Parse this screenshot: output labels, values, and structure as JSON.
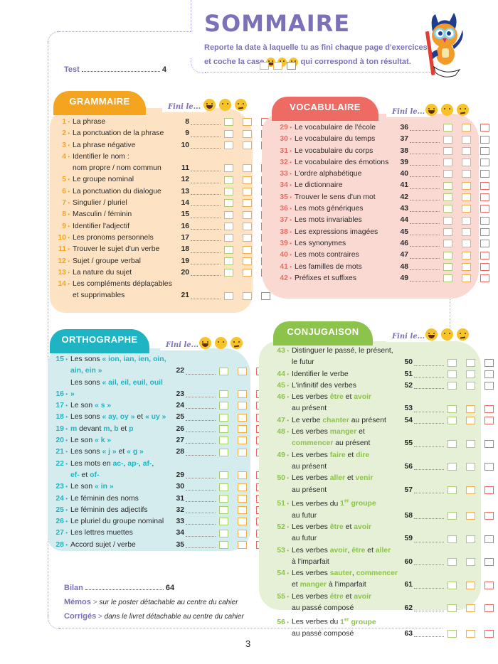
{
  "header": {
    "title": "SOMMAIRE",
    "intro_line1": "Reporte la date à laquelle tu as fini chaque page d'exercices",
    "intro_line2_before": "et coche la case",
    "intro_line2_after": "qui correspond à ton résultat.",
    "mascot": "owl-with-pencil"
  },
  "test": {
    "label": "Test",
    "page": "4"
  },
  "fini_label": "Fini le...",
  "faces": [
    "happy-face-icon",
    "neutral-face-icon",
    "worried-face-icon"
  ],
  "colors": {
    "title": "#7c70b8",
    "grammaire": "#f4a41e",
    "grammaire_bg": "#fde3c4",
    "vocabulaire": "#ee6b63",
    "vocabulaire_bg": "#fbd9d3",
    "orthographe": "#1fb4c4",
    "orthographe_bg": "#d5ecef",
    "conjugaison": "#8cc34a",
    "conjugaison_bg": "#e5f0d6",
    "box_green": "#a8cf6b",
    "box_orange": "#f3b046",
    "box_red": "#ec6a62"
  },
  "sections": {
    "grammaire": {
      "title": "GRAMMAIRE",
      "items": [
        {
          "num": "1",
          "label": "La phrase",
          "page": "8"
        },
        {
          "num": "2",
          "label": "La ponctuation de la phrase",
          "page": "9"
        },
        {
          "num": "3",
          "label": "La phrase négative",
          "page": "10"
        },
        {
          "num": "4",
          "label": "Identifier le nom :",
          "label2": "nom propre / nom commun",
          "page": "11"
        },
        {
          "num": "5",
          "label": "Le groupe nominal",
          "page": "12"
        },
        {
          "num": "6",
          "label": "La ponctuation du dialogue",
          "page": "13"
        },
        {
          "num": "7",
          "label": "Singulier / pluriel",
          "page": "14"
        },
        {
          "num": "8",
          "label": "Masculin / féminin",
          "page": "15"
        },
        {
          "num": "9",
          "label": "Identifier l'adjectif",
          "page": "16"
        },
        {
          "num": "10",
          "label": "Les pronoms personnels",
          "page": "17"
        },
        {
          "num": "11",
          "label": "Trouver le sujet d'un verbe",
          "page": "18"
        },
        {
          "num": "12",
          "label": "Sujet / groupe verbal",
          "page": "19"
        },
        {
          "num": "13",
          "label": "La nature du sujet",
          "page": "20"
        },
        {
          "num": "14",
          "label": "Les compléments déplaçables",
          "label2": "et supprimables",
          "page": "21"
        }
      ]
    },
    "vocabulaire": {
      "title": "VOCABULAIRE",
      "items": [
        {
          "num": "29",
          "label": "Le vocabulaire de l'école",
          "page": "36"
        },
        {
          "num": "30",
          "label": "Le vocabulaire du temps",
          "page": "37"
        },
        {
          "num": "31",
          "label": "Le vocabulaire du corps",
          "page": "38"
        },
        {
          "num": "32",
          "label": "Le vocabulaire des émotions",
          "page": "39"
        },
        {
          "num": "33",
          "label": "L'ordre alphabétique",
          "page": "40"
        },
        {
          "num": "34",
          "label": "Le dictionnaire",
          "page": "41"
        },
        {
          "num": "35",
          "label": "Trouver le sens d'un mot",
          "page": "42"
        },
        {
          "num": "36",
          "label": "Les mots génériques",
          "page": "43"
        },
        {
          "num": "37",
          "label": "Les mots invariables",
          "page": "44"
        },
        {
          "num": "38",
          "label": "Les expressions imagées",
          "page": "45"
        },
        {
          "num": "39",
          "label": "Les synonymes",
          "page": "46"
        },
        {
          "num": "40",
          "label": "Les mots contraires",
          "page": "47"
        },
        {
          "num": "41",
          "label": "Les familles de mots",
          "page": "48"
        },
        {
          "num": "42",
          "label": "Préfixes et suffixes",
          "page": "49"
        }
      ]
    },
    "orthographe": {
      "title": "ORTHOGRAPHE",
      "items": [
        {
          "num": "15",
          "parts": [
            [
              "Les sons ",
              0
            ],
            [
              "« ion, ian, ien, oin,",
              1
            ]
          ],
          "parts2": [
            [
              "ain, ein »",
              1
            ]
          ],
          "page": "22"
        },
        {
          "num": "16",
          "parts": [
            [
              "Les sons ",
              0
            ],
            [
              "« ail, eil, euil, ouil »",
              1
            ]
          ],
          "page": "23"
        },
        {
          "num": "17",
          "parts": [
            [
              "Le son ",
              0
            ],
            [
              "« s »",
              1
            ]
          ],
          "page": "24"
        },
        {
          "num": "18",
          "parts": [
            [
              "Les sons ",
              0
            ],
            [
              "« ay, oy »",
              1
            ],
            [
              " et ",
              0
            ],
            [
              "« uy »",
              1
            ]
          ],
          "page": "25"
        },
        {
          "num": "19",
          "parts": [
            [
              "m",
              1
            ],
            [
              " devant ",
              0
            ],
            [
              "m",
              1
            ],
            [
              ", ",
              0
            ],
            [
              "b",
              1
            ],
            [
              " et ",
              0
            ],
            [
              "p",
              1
            ]
          ],
          "page": "26"
        },
        {
          "num": "20",
          "parts": [
            [
              "Le son ",
              0
            ],
            [
              "« k »",
              1
            ]
          ],
          "page": "27"
        },
        {
          "num": "21",
          "parts": [
            [
              "Les sons ",
              0
            ],
            [
              "« j »",
              1
            ],
            [
              " et ",
              0
            ],
            [
              "« g »",
              1
            ]
          ],
          "page": "28"
        },
        {
          "num": "22",
          "parts": [
            [
              "Les mots en ",
              0
            ],
            [
              "ac-",
              1
            ],
            [
              ", ",
              0
            ],
            [
              "ap-",
              1
            ],
            [
              ", ",
              0
            ],
            [
              "af-",
              1
            ],
            [
              ",",
              0
            ]
          ],
          "parts2": [
            [
              "ef-",
              1
            ],
            [
              " et ",
              0
            ],
            [
              "of-",
              1
            ]
          ],
          "page": "29"
        },
        {
          "num": "23",
          "parts": [
            [
              "Le son ",
              0
            ],
            [
              "« in »",
              1
            ]
          ],
          "page": "30"
        },
        {
          "num": "24",
          "parts": [
            [
              "Le féminin des noms",
              0
            ]
          ],
          "page": "31"
        },
        {
          "num": "25",
          "parts": [
            [
              "Le féminin des adjectifs",
              0
            ]
          ],
          "page": "32"
        },
        {
          "num": "26",
          "parts": [
            [
              "Le pluriel du groupe nominal",
              0
            ]
          ],
          "page": "33"
        },
        {
          "num": "27",
          "parts": [
            [
              "Les lettres muettes",
              0
            ]
          ],
          "page": "34"
        },
        {
          "num": "28",
          "parts": [
            [
              "Accord sujet / verbe",
              0
            ]
          ],
          "page": "35"
        }
      ]
    },
    "conjugaison": {
      "title": "CONJUGAISON",
      "items": [
        {
          "num": "43",
          "parts": [
            [
              "Distinguer le passé, le présent,",
              0
            ]
          ],
          "parts2": [
            [
              "le futur",
              0
            ]
          ],
          "page": "50"
        },
        {
          "num": "44",
          "parts": [
            [
              "Identifier le verbe",
              0
            ]
          ],
          "page": "51"
        },
        {
          "num": "45",
          "parts": [
            [
              "L'infinitif des verbes",
              0
            ]
          ],
          "page": "52"
        },
        {
          "num": "46",
          "parts": [
            [
              "Les verbes ",
              0
            ],
            [
              "être",
              1
            ],
            [
              " et ",
              0
            ],
            [
              "avoir",
              1
            ]
          ],
          "parts2": [
            [
              "au présent",
              0
            ]
          ],
          "page": "53"
        },
        {
          "num": "47",
          "parts": [
            [
              "Le verbe ",
              0
            ],
            [
              "chanter",
              1
            ],
            [
              " au présent",
              0
            ]
          ],
          "page": "54"
        },
        {
          "num": "48",
          "parts": [
            [
              "Les verbes ",
              0
            ],
            [
              "manger",
              1
            ],
            [
              " et",
              0
            ]
          ],
          "parts2": [
            [
              "commencer",
              1
            ],
            [
              " au présent",
              0
            ]
          ],
          "page": "55"
        },
        {
          "num": "49",
          "parts": [
            [
              "Les verbes ",
              0
            ],
            [
              "faire",
              1
            ],
            [
              " et ",
              0
            ],
            [
              "dire",
              1
            ]
          ],
          "parts2": [
            [
              "au présent",
              0
            ]
          ],
          "page": "56"
        },
        {
          "num": "50",
          "parts": [
            [
              "Les verbes ",
              0
            ],
            [
              "aller",
              1
            ],
            [
              " et ",
              0
            ],
            [
              "venir",
              1
            ]
          ],
          "parts2": [
            [
              "au présent",
              0
            ]
          ],
          "page": "57"
        },
        {
          "num": "51",
          "parts": [
            [
              "Les verbes du ",
              0
            ],
            [
              "1er groupe",
              1
            ]
          ],
          "parts2": [
            [
              "au futur",
              0
            ]
          ],
          "page": "58"
        },
        {
          "num": "52",
          "parts": [
            [
              "Les verbes ",
              0
            ],
            [
              "être",
              1
            ],
            [
              " et ",
              0
            ],
            [
              "avoir",
              1
            ]
          ],
          "parts2": [
            [
              "au futur",
              0
            ]
          ],
          "page": "59"
        },
        {
          "num": "53",
          "parts": [
            [
              "Les verbes ",
              0
            ],
            [
              "avoir",
              1
            ],
            [
              ", ",
              0
            ],
            [
              "être",
              1
            ],
            [
              " et ",
              0
            ],
            [
              "aller",
              1
            ]
          ],
          "parts2": [
            [
              "à l'imparfait",
              0
            ]
          ],
          "page": "60"
        },
        {
          "num": "54",
          "parts": [
            [
              "Les verbes ",
              0
            ],
            [
              "sauter",
              1
            ],
            [
              ", ",
              0
            ],
            [
              "commencer",
              1
            ]
          ],
          "parts2": [
            [
              "et ",
              0
            ],
            [
              "manger",
              1
            ],
            [
              " à l'imparfait",
              0
            ]
          ],
          "page": "61"
        },
        {
          "num": "55",
          "parts": [
            [
              "Les verbes ",
              0
            ],
            [
              "être",
              1
            ],
            [
              " et ",
              0
            ],
            [
              "avoir",
              1
            ]
          ],
          "parts2": [
            [
              "au passé composé",
              0
            ]
          ],
          "page": "62"
        },
        {
          "num": "56",
          "parts": [
            [
              "Les verbes du ",
              0
            ],
            [
              "1er groupe",
              1
            ]
          ],
          "parts2": [
            [
              "au passé composé",
              0
            ]
          ],
          "page": "63"
        }
      ]
    }
  },
  "footer": {
    "bilan": {
      "label": "Bilan",
      "page": "64"
    },
    "memos": {
      "label": "Mémos",
      "text": "sur le poster détachable au centre du cahier"
    },
    "corriges": {
      "label": "Corrigés",
      "text": "dans le livret détachable au centre du cahier"
    },
    "separator": ">"
  },
  "page_number": "3"
}
